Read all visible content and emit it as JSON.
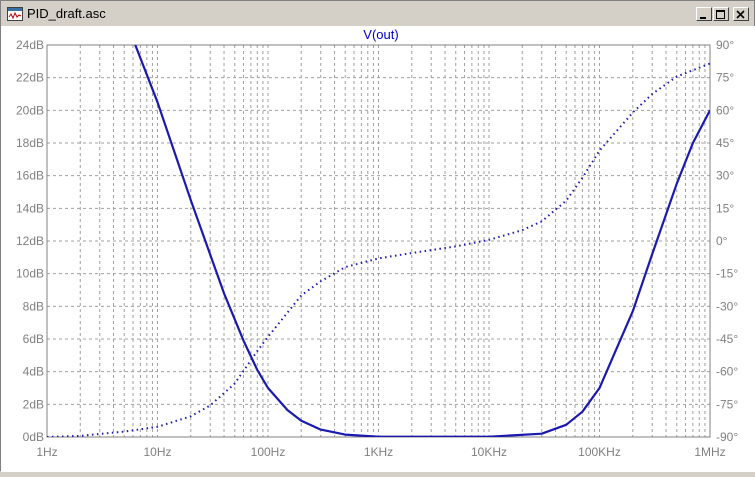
{
  "window": {
    "title": "PID_draft.asc",
    "icon": "schematic-icon",
    "buttons": {
      "minimize": "minimize-icon",
      "maximize": "maximize-icon",
      "close": "close-icon"
    }
  },
  "colors": {
    "trace": "#1a1ab0",
    "grid": "#a0a0a0",
    "axis_text": "#808080",
    "title": "#0000c0"
  },
  "chart_data": {
    "type": "line",
    "title": "V(out)",
    "xscale": "log",
    "xlim": [
      1,
      1000000
    ],
    "x_ticks": [
      "1Hz",
      "10Hz",
      "100Hz",
      "1KHz",
      "10KHz",
      "100KHz",
      "1MHz"
    ],
    "y_left": {
      "lim": [
        0,
        24
      ],
      "ticks": [
        "0dB",
        "2dB",
        "4dB",
        "6dB",
        "8dB",
        "10dB",
        "12dB",
        "14dB",
        "16dB",
        "18dB",
        "20dB",
        "22dB",
        "24dB"
      ]
    },
    "y_right": {
      "lim": [
        -90,
        90
      ],
      "ticks": [
        "-90°",
        "-75°",
        "-60°",
        "-45°",
        "-30°",
        "-15°",
        "0°",
        "15°",
        "30°",
        "45°",
        "60°",
        "75°",
        "90°"
      ]
    },
    "grid": true,
    "series": [
      {
        "style": "solid",
        "axis": "left",
        "x": [
          6.3,
          10,
          20,
          40,
          60,
          80,
          100,
          150,
          200,
          300,
          500,
          1000,
          10000,
          30000,
          50000,
          70000,
          100000,
          200000,
          300000,
          500000,
          700000,
          1000000
        ],
        "y": [
          24,
          20.5,
          14.5,
          8.8,
          5.9,
          4.1,
          3.0,
          1.65,
          1.0,
          0.45,
          0.15,
          0.02,
          0.02,
          0.2,
          0.75,
          1.55,
          3.0,
          7.7,
          11.2,
          15.5,
          18.0,
          20.0
        ]
      },
      {
        "style": "dotted",
        "axis": "right",
        "x": [
          1,
          2,
          5,
          10,
          20,
          30,
          50,
          80,
          100,
          200,
          300,
          500,
          1000,
          2000,
          5000,
          10000,
          20000,
          30000,
          50000,
          70000,
          100000,
          200000,
          300000,
          500000,
          1000000
        ],
        "y": [
          -90,
          -89.5,
          -87.5,
          -85.3,
          -80.5,
          -75.5,
          -65.5,
          -50.5,
          -44,
          -25,
          -18.5,
          -12,
          -8,
          -5.5,
          -2.5,
          0.5,
          5,
          9,
          18.5,
          29,
          41.5,
          59,
          67.5,
          75.5,
          81.5
        ]
      }
    ]
  }
}
